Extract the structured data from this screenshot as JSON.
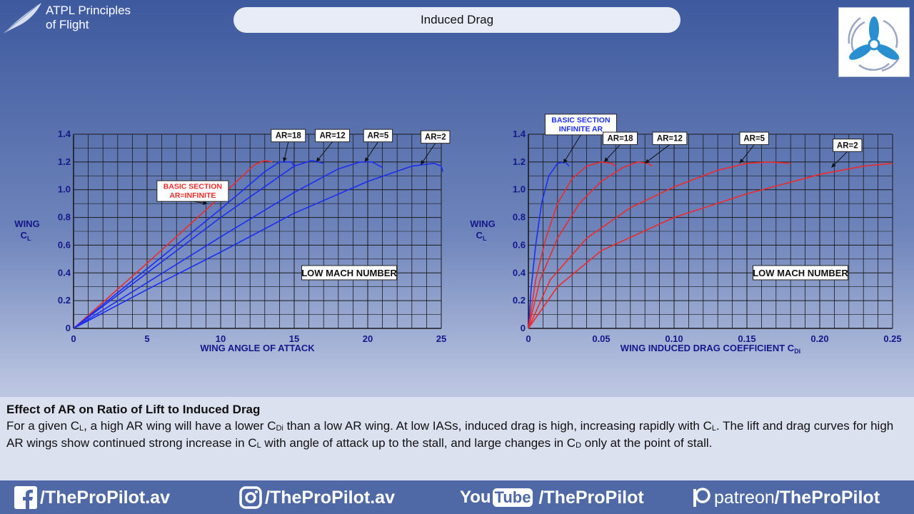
{
  "brand": {
    "line1": "ATPL Principles",
    "line2": "of Flight",
    "icon": "feather-icon"
  },
  "header": {
    "title": "Induced Drag"
  },
  "logo": {
    "icon": "propeller-logo-icon"
  },
  "colors": {
    "red": "#ee2a2a",
    "blue": "#1c2ef0",
    "grid": "#1a1a1a",
    "axis_text": "#15188a"
  },
  "chart_data": [
    {
      "type": "line",
      "xlabel": "WING ANGLE OF ATTACK",
      "ylabel": [
        "WING",
        "C",
        "L"
      ],
      "xlim": [
        0,
        25
      ],
      "ylim": [
        0,
        1.4
      ],
      "x_ticks": [
        {
          "value": 0,
          "label": "0"
        },
        {
          "value": 5,
          "label": "5"
        },
        {
          "value": 10,
          "label": "10"
        },
        {
          "value": 15,
          "label": "15"
        },
        {
          "value": 20,
          "label": "20"
        },
        {
          "value": 25,
          "label": "25"
        }
      ],
      "y_ticks": [
        {
          "value": 0,
          "label": "0"
        },
        {
          "value": 0.2,
          "label": "0.2"
        },
        {
          "value": 0.4,
          "label": "0.4"
        },
        {
          "value": 0.6,
          "label": "0.6"
        },
        {
          "value": 0.8,
          "label": "0.8"
        },
        {
          "value": 1.0,
          "label": "1.0"
        },
        {
          "value": 1.2,
          "label": "1.2"
        },
        {
          "value": 1.4,
          "label": "1.4"
        }
      ],
      "grid": true,
      "annotation": "LOW MACH NUMBER",
      "series": [
        {
          "name": "BASIC SECTION AR=INFINITE",
          "color": "#ee2a2a",
          "points": [
            [
              0,
              0
            ],
            [
              5,
              0.47
            ],
            [
              10,
              0.95
            ],
            [
              12.3,
              1.18
            ],
            [
              13,
              1.21
            ],
            [
              13.5,
              1.2
            ]
          ],
          "label_lines": [
            "BASIC SECTION",
            "AR=INFINITE"
          ],
          "label_color": "#ee2a2a",
          "label_at": [
            8.1,
            0.99
          ],
          "arrow_to": [
            9.1,
            0.9
          ]
        },
        {
          "name": "AR=18",
          "color": "#1c2ef0",
          "points": [
            [
              0,
              0
            ],
            [
              5,
              0.43
            ],
            [
              10,
              0.86
            ],
            [
              13,
              1.13
            ],
            [
              14,
              1.2
            ],
            [
              14.8,
              1.2
            ],
            [
              15,
              1.17
            ]
          ],
          "label_lines": [
            "AR=18"
          ],
          "label_color": "#111",
          "label_at": [
            14.6,
            1.39
          ],
          "arrow_to": [
            14.3,
            1.2
          ]
        },
        {
          "name": "AR=12",
          "color": "#1c2ef0",
          "points": [
            [
              0,
              0
            ],
            [
              5,
              0.4
            ],
            [
              10,
              0.8
            ],
            [
              15,
              1.17
            ],
            [
              16.2,
              1.21
            ],
            [
              17,
              1.19
            ]
          ],
          "label_lines": [
            "AR=12"
          ],
          "label_color": "#111",
          "label_at": [
            17.6,
            1.39
          ],
          "arrow_to": [
            16.5,
            1.2
          ]
        },
        {
          "name": "AR=5",
          "color": "#1c2ef0",
          "points": [
            [
              0,
              0
            ],
            [
              5,
              0.33
            ],
            [
              10,
              0.66
            ],
            [
              15,
              0.98
            ],
            [
              18,
              1.15
            ],
            [
              19.5,
              1.2
            ],
            [
              20.3,
              1.2
            ],
            [
              21,
              1.16
            ]
          ],
          "label_lines": [
            "AR=5"
          ],
          "label_color": "#111",
          "label_at": [
            20.7,
            1.39
          ],
          "arrow_to": [
            19.8,
            1.2
          ]
        },
        {
          "name": "AR=2",
          "color": "#1c2ef0",
          "points": [
            [
              0,
              0
            ],
            [
              5,
              0.28
            ],
            [
              10,
              0.55
            ],
            [
              15,
              0.83
            ],
            [
              20,
              1.06
            ],
            [
              23,
              1.17
            ],
            [
              24.5,
              1.19
            ],
            [
              25,
              1.17
            ],
            [
              25.1,
              1.13
            ]
          ],
          "label_lines": [
            "AR=2"
          ],
          "label_color": "#111",
          "label_at": [
            24.6,
            1.38
          ],
          "arrow_to": [
            23.6,
            1.18
          ]
        }
      ]
    },
    {
      "type": "line",
      "xlabel": "WING INDUCED DRAG COEFFICIENT C",
      "xlabel_sub": "Di",
      "ylabel": [
        "WING",
        "C",
        "L"
      ],
      "xlim": [
        0,
        0.25
      ],
      "ylim": [
        0,
        1.4
      ],
      "x_ticks": [
        {
          "value": 0,
          "label": "0"
        },
        {
          "value": 0.05,
          "label": "0.05"
        },
        {
          "value": 0.1,
          "label": "0.10"
        },
        {
          "value": 0.15,
          "label": "0.15"
        },
        {
          "value": 0.2,
          "label": "0.20"
        },
        {
          "value": 0.25,
          "label": "0.25"
        }
      ],
      "y_ticks": [
        {
          "value": 0,
          "label": "0"
        },
        {
          "value": 0.2,
          "label": "0.2"
        },
        {
          "value": 0.4,
          "label": "0.4"
        },
        {
          "value": 0.6,
          "label": "0.6"
        },
        {
          "value": 0.8,
          "label": "0.8"
        },
        {
          "value": 1.0,
          "label": "1.0"
        },
        {
          "value": 1.2,
          "label": "1.2"
        },
        {
          "value": 1.4,
          "label": "1.4"
        }
      ],
      "grid": true,
      "annotation": "LOW MACH NUMBER",
      "series": [
        {
          "name": "BASIC SECTION INFINITE AR",
          "color": "#1c2ef0",
          "points": [
            [
              0,
              0
            ],
            [
              0.002,
              0.3
            ],
            [
              0.005,
              0.6
            ],
            [
              0.009,
              0.9
            ],
            [
              0.014,
              1.1
            ],
            [
              0.02,
              1.19
            ],
            [
              0.025,
              1.2
            ],
            [
              0.028,
              1.17
            ]
          ],
          "label_lines": [
            "BASIC SECTION",
            "INFINITE AR"
          ],
          "label_color": "#1c2ef0",
          "label_at": [
            0.036,
            1.47
          ],
          "arrow_to": [
            0.024,
            1.19
          ]
        },
        {
          "name": "AR=18",
          "color": "#ee2a2a",
          "points": [
            [
              0,
              0
            ],
            [
              0.005,
              0.35
            ],
            [
              0.012,
              0.65
            ],
            [
              0.02,
              0.9
            ],
            [
              0.03,
              1.08
            ],
            [
              0.04,
              1.17
            ],
            [
              0.05,
              1.2
            ],
            [
              0.057,
              1.19
            ],
            [
              0.06,
              1.17
            ]
          ],
          "label_lines": [
            "AR=18"
          ],
          "label_color": "#111",
          "label_at": [
            0.063,
            1.37
          ],
          "arrow_to": [
            0.052,
            1.2
          ]
        },
        {
          "name": "AR=12",
          "color": "#ee2a2a",
          "points": [
            [
              0,
              0
            ],
            [
              0.008,
              0.35
            ],
            [
              0.02,
              0.65
            ],
            [
              0.035,
              0.9
            ],
            [
              0.05,
              1.06
            ],
            [
              0.065,
              1.16
            ],
            [
              0.075,
              1.2
            ],
            [
              0.082,
              1.19
            ],
            [
              0.085,
              1.17
            ]
          ],
          "label_lines": [
            "AR=12"
          ],
          "label_color": "#111",
          "label_at": [
            0.097,
            1.37
          ],
          "arrow_to": [
            0.08,
            1.19
          ]
        },
        {
          "name": "AR=5",
          "color": "#ee2a2a",
          "points": [
            [
              0,
              0
            ],
            [
              0.015,
              0.35
            ],
            [
              0.04,
              0.65
            ],
            [
              0.07,
              0.87
            ],
            [
              0.1,
              1.02
            ],
            [
              0.13,
              1.14
            ],
            [
              0.15,
              1.19
            ],
            [
              0.165,
              1.2
            ],
            [
              0.18,
              1.19
            ]
          ],
          "label_lines": [
            "AR=5"
          ],
          "label_color": "#111",
          "label_at": [
            0.155,
            1.37
          ],
          "arrow_to": [
            0.145,
            1.19
          ]
        },
        {
          "name": "AR=2",
          "color": "#ee2a2a",
          "points": [
            [
              0,
              0
            ],
            [
              0.02,
              0.3
            ],
            [
              0.05,
              0.56
            ],
            [
              0.1,
              0.8
            ],
            [
              0.15,
              0.97
            ],
            [
              0.2,
              1.11
            ],
            [
              0.23,
              1.17
            ],
            [
              0.25,
              1.19
            ]
          ],
          "label_lines": [
            "AR=2"
          ],
          "label_color": "#111",
          "label_at": [
            0.219,
            1.32
          ],
          "arrow_to": [
            0.208,
            1.16
          ]
        }
      ]
    }
  ],
  "explanation": {
    "heading": "Effect of AR on Ratio of Lift to Induced Drag",
    "parts": [
      {
        "t": "For a given C"
      },
      {
        "sub": "L"
      },
      {
        "t": ", a high AR wing will have a lower C"
      },
      {
        "sub": "Di"
      },
      {
        "t": " than a low AR wing. At low IASs, induced drag is high, increasing rapidly with C"
      },
      {
        "sub": "L"
      },
      {
        "t": ". The lift and drag curves for high AR wings show continued strong increase in C"
      },
      {
        "sub": "L"
      },
      {
        "t": " with angle of attack up to the stall, and large changes in C"
      },
      {
        "sub": "D"
      },
      {
        "t": " only at the point of stall."
      }
    ]
  },
  "footer": {
    "facebook": {
      "icon": "facebook-icon",
      "text": "/TheProPilot.av"
    },
    "instagram": {
      "icon": "instagram-icon",
      "text": "/TheProPilot.av"
    },
    "youtube": {
      "icon_you": "You",
      "icon_tube": "Tube",
      "text": "/TheProPilot"
    },
    "patreon": {
      "icon": "patreon-icon",
      "word": "patreon",
      "text": "/TheProPilot"
    }
  }
}
